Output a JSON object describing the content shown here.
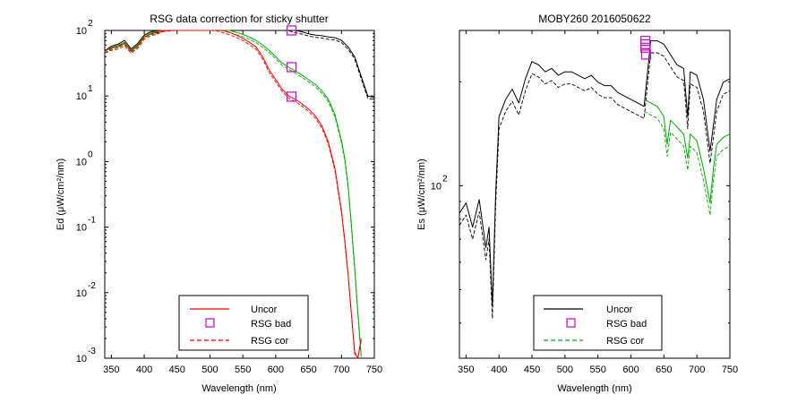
{
  "chart_data": [
    {
      "type": "line",
      "title": "RSG data correction for sticky shutter",
      "xlabel": "Wavelength (nm)",
      "ylabel": "Ed (μW/cm²/nm)",
      "xlim": [
        340,
        750
      ],
      "ylim_log10": [
        -3,
        2
      ],
      "y_scale": "log",
      "x_ticks": [
        350,
        400,
        450,
        500,
        550,
        600,
        650,
        700,
        750
      ],
      "y_ticks": [
        {
          "exp": 2,
          "base": "10",
          "sup": "2"
        },
        {
          "exp": 1,
          "base": "10",
          "sup": "1"
        },
        {
          "exp": 0,
          "base": "10",
          "sup": "0"
        },
        {
          "exp": -1,
          "base": "10",
          "sup": "-1"
        },
        {
          "exp": -2,
          "base": "10",
          "sup": "-2"
        },
        {
          "exp": -3,
          "base": "10",
          "sup": "-3"
        }
      ],
      "legend": {
        "placement": "bottom-center",
        "entries": [
          {
            "label": "Uncor",
            "style": "solid",
            "color": "#ff0000"
          },
          {
            "label": "RSG bad",
            "style": "marker",
            "color": "#cc00cc"
          },
          {
            "label": "RSG cor",
            "style": "dashed",
            "color": "#ff0000"
          }
        ]
      },
      "series": [
        {
          "color": "#000000",
          "style": "solid",
          "x": [
            340,
            350,
            360,
            370,
            380,
            390,
            400,
            410,
            420,
            430,
            440,
            450,
            460,
            470,
            480,
            490,
            500,
            510,
            520,
            530,
            540,
            550,
            560,
            570,
            580,
            590,
            600,
            610,
            620,
            630,
            640,
            650,
            660,
            670,
            680,
            690,
            700,
            710,
            720,
            730,
            740,
            750
          ],
          "log10y": [
            1.69,
            1.76,
            1.79,
            1.85,
            1.72,
            1.8,
            1.93,
            1.98,
            2.0,
            2.05,
            2.05,
            2.1,
            2.11,
            2.12,
            2.13,
            2.14,
            2.13,
            2.12,
            2.1,
            2.1,
            2.09,
            2.09,
            2.08,
            2.08,
            2.08,
            2.07,
            2.06,
            2.05,
            2.03,
            2.0,
            1.98,
            1.95,
            1.93,
            1.92,
            1.9,
            1.89,
            1.85,
            1.75,
            1.6,
            1.3,
            1.0,
            0.98
          ]
        },
        {
          "color": "#00aa00",
          "style": "solid",
          "x": [
            340,
            350,
            360,
            370,
            380,
            390,
            400,
            410,
            420,
            430,
            440,
            450,
            460,
            470,
            480,
            490,
            500,
            510,
            520,
            530,
            540,
            550,
            560,
            570,
            580,
            590,
            600,
            610,
            620,
            630,
            640,
            650,
            660,
            670,
            680,
            690,
            700,
            705,
            710,
            715,
            720,
            725,
            730
          ],
          "log10y": [
            1.69,
            1.74,
            1.77,
            1.82,
            1.7,
            1.78,
            1.92,
            1.97,
            1.99,
            2.02,
            2.04,
            2.07,
            2.08,
            2.09,
            2.1,
            2.1,
            2.08,
            2.06,
            2.03,
            2.0,
            1.97,
            1.94,
            1.9,
            1.85,
            1.78,
            1.7,
            1.6,
            1.5,
            1.44,
            1.38,
            1.32,
            1.25,
            1.18,
            1.08,
            0.95,
            0.72,
            0.32,
            0.05,
            -0.35,
            -0.95,
            -1.6,
            -2.3,
            -2.95
          ]
        },
        {
          "color": "#ff0000",
          "style": "solid",
          "x": [
            340,
            350,
            360,
            370,
            380,
            390,
            400,
            410,
            420,
            430,
            440,
            450,
            460,
            470,
            480,
            490,
            500,
            510,
            520,
            530,
            540,
            550,
            560,
            570,
            580,
            590,
            600,
            610,
            620,
            630,
            640,
            650,
            660,
            670,
            680,
            690,
            700,
            705,
            710,
            715,
            720,
            725,
            730
          ],
          "log10y": [
            1.69,
            1.73,
            1.75,
            1.8,
            1.69,
            1.76,
            1.9,
            1.95,
            1.98,
            2.02,
            2.03,
            2.07,
            2.08,
            2.08,
            2.09,
            2.08,
            2.06,
            2.03,
            2.0,
            1.97,
            1.93,
            1.88,
            1.82,
            1.75,
            1.6,
            1.4,
            1.25,
            1.1,
            1.0,
            0.95,
            0.88,
            0.8,
            0.7,
            0.55,
            0.3,
            -0.1,
            -0.75,
            -1.2,
            -1.7,
            -2.3,
            -2.9,
            -3.0,
            -2.7
          ]
        }
      ],
      "markers": {
        "color": "#cc00cc",
        "x": [
          624,
          624,
          624
        ],
        "log10y": [
          2.04,
          1.44,
          0.99
        ]
      }
    },
    {
      "type": "line",
      "title": "MOBY260  2016050622",
      "xlabel": "Wavelength (nm)",
      "ylabel": "Es (μW/cm²/nm)",
      "xlim": [
        340,
        750
      ],
      "ylim_log10": [
        1.5,
        2.45
      ],
      "y_scale": "log",
      "x_ticks": [
        350,
        400,
        450,
        500,
        550,
        600,
        650,
        700,
        750
      ],
      "y_ticks": [
        {
          "exp": 2,
          "base": "10",
          "sup": "2"
        }
      ],
      "legend": {
        "placement": "bottom-center",
        "entries": [
          {
            "label": "Uncor",
            "style": "solid",
            "color": "#000000"
          },
          {
            "label": "RSG bad",
            "style": "marker",
            "color": "#cc00cc"
          },
          {
            "label": "RSG cor",
            "style": "dashed",
            "color": "#00aa00"
          }
        ]
      },
      "series": [
        {
          "color": "#000000",
          "style": "solid",
          "x": [
            340,
            350,
            360,
            370,
            380,
            385,
            390,
            395,
            400,
            410,
            420,
            430,
            440,
            450,
            460,
            470,
            480,
            490,
            500,
            510,
            520,
            530,
            540,
            550,
            560,
            570,
            580,
            590,
            600,
            610,
            620,
            630,
            640,
            650,
            660,
            670,
            680,
            686,
            690,
            700,
            710,
            720,
            730,
            740,
            750
          ],
          "log10y": [
            1.92,
            1.95,
            1.88,
            1.96,
            1.82,
            1.88,
            1.65,
            1.98,
            2.2,
            2.25,
            2.28,
            2.24,
            2.31,
            2.36,
            2.35,
            2.33,
            2.34,
            2.32,
            2.33,
            2.33,
            2.32,
            2.31,
            2.32,
            2.3,
            2.29,
            2.29,
            2.27,
            2.26,
            2.25,
            2.24,
            2.23,
            2.42,
            2.42,
            2.41,
            2.38,
            2.35,
            2.34,
            2.2,
            2.33,
            2.32,
            2.25,
            2.1,
            2.25,
            2.3,
            2.31
          ]
        },
        {
          "color": "#00aa00",
          "style": "solid",
          "x": [
            620,
            630,
            640,
            650,
            655,
            660,
            670,
            680,
            686,
            690,
            700,
            710,
            715,
            720,
            725,
            730,
            740,
            750
          ],
          "log10y": [
            2.25,
            2.24,
            2.23,
            2.2,
            2.12,
            2.19,
            2.17,
            2.15,
            2.08,
            2.15,
            2.13,
            2.05,
            2.0,
            1.95,
            2.05,
            2.12,
            2.14,
            2.15
          ]
        }
      ],
      "markers": {
        "color": "#cc00cc",
        "x": [
          622,
          622,
          622,
          623
        ],
        "log10y": [
          2.4,
          2.41,
          2.42,
          2.38
        ]
      }
    }
  ]
}
